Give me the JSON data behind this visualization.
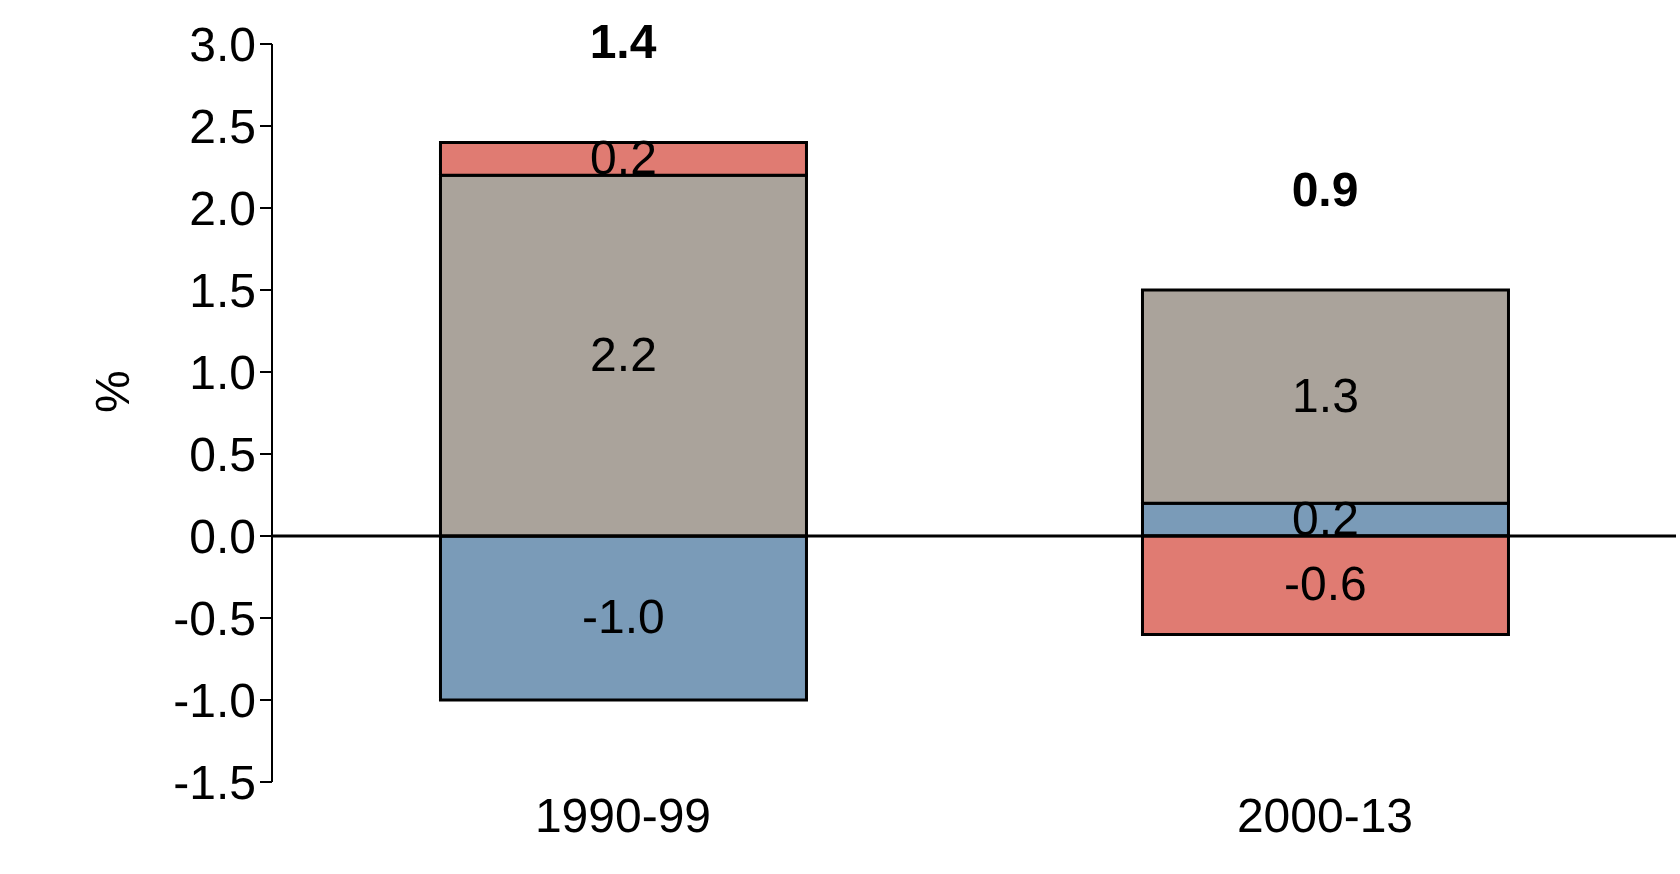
{
  "chart_data": {
    "type": "bar",
    "stacked": true,
    "ylabel": "%",
    "categories": [
      "1990-99",
      "2000-13"
    ],
    "series": [
      {
        "color": "#7a9bb8",
        "values": [
          -1.0,
          0.2
        ],
        "value_labels": [
          "-1.0",
          "0.2"
        ]
      },
      {
        "color": "#aaa39b",
        "values": [
          2.2,
          1.3
        ],
        "value_labels": [
          "2.2",
          "1.3"
        ]
      },
      {
        "color": "#e07b72",
        "values": [
          0.2,
          -0.6
        ],
        "value_labels": [
          "0.2",
          "-0.6"
        ]
      }
    ],
    "totals": [
      "1.4",
      "0.9"
    ],
    "ylim": [
      -1.5,
      3.0
    ],
    "yticks": [
      -1.5,
      {
        "value": -1,
        "label": "-1.0"
      },
      -0.5,
      {
        "value": 0,
        "label": "0.0"
      },
      0.5,
      {
        "value": 1,
        "label": "1.0"
      },
      1.5,
      {
        "value": 2,
        "label": "2.0"
      },
      2.5,
      {
        "value": 3,
        "label": "3.0"
      }
    ],
    "ref_lines": [
      {
        "axis": "y",
        "value": 0,
        "color": "#000000"
      }
    ],
    "grid": false,
    "legend": false
  }
}
